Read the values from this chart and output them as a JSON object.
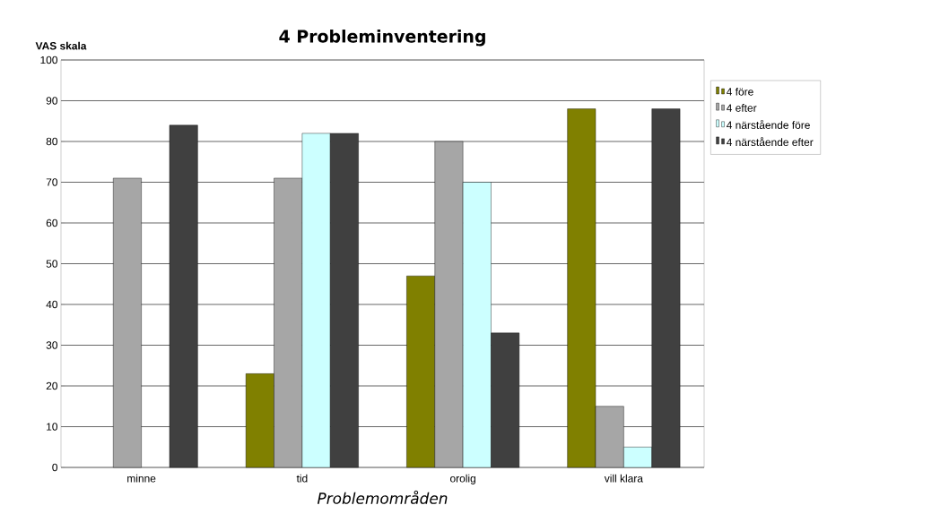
{
  "chart_data": {
    "type": "bar",
    "title": "4 Probleminventering",
    "xlabel": "Problemområden",
    "ylabel": "VAS skala",
    "categories": [
      "minne",
      "tid",
      "orolig",
      "vill klara"
    ],
    "series": [
      {
        "name": "4 före",
        "color": "#808000",
        "values": [
          null,
          23,
          47,
          88
        ]
      },
      {
        "name": "4 efter",
        "color": "#a6a6a6",
        "values": [
          71,
          71,
          80,
          15
        ]
      },
      {
        "name": "4 närstående före",
        "color": "#ccffff",
        "values": [
          null,
          82,
          70,
          5
        ]
      },
      {
        "name": "4 närstående efter",
        "color": "#404040",
        "values": [
          84,
          82,
          33,
          88
        ]
      }
    ],
    "ylim": [
      0,
      100
    ],
    "yticks": [
      0,
      10,
      20,
      30,
      40,
      50,
      60,
      70,
      80,
      90,
      100
    ],
    "grid": "y",
    "legend": "right"
  }
}
